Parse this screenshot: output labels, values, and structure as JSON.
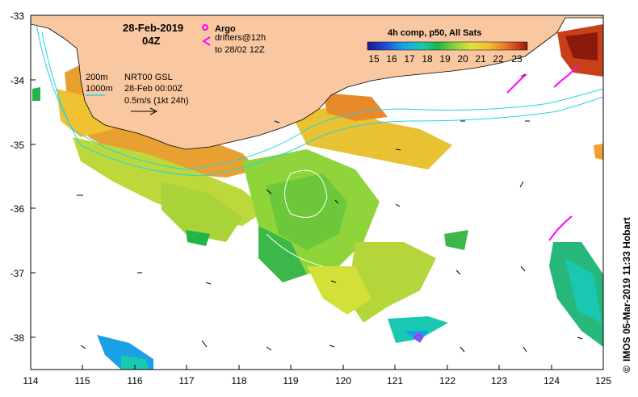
{
  "map": {
    "title_date": "28-Feb-2019",
    "title_time": "04Z",
    "legend": {
      "argo_label": "Argo",
      "drifters_label": "drifters@12h",
      "drifters_sub": "to 28/02 12Z",
      "argo_color": "#ff00ff",
      "drifter_color": "#ff00ff"
    },
    "contours": {
      "c200": "200m",
      "c1000": "1000m",
      "contour_color": "#22d3e6"
    },
    "current_info": {
      "line1": "NRT00 GSL",
      "line2": "28-Feb 00:00Z",
      "line3": "0.5m/s (1kt 24h)"
    },
    "colorbar": {
      "title": "4h comp, p50, All Sats",
      "ticks": [
        "15",
        "16",
        "17",
        "18",
        "19",
        "20",
        "21",
        "22",
        "23"
      ],
      "colors": [
        "#1a1a8c",
        "#1f4fd6",
        "#1aa0e6",
        "#19c8b0",
        "#22b44a",
        "#6fcf3a",
        "#c8e03a",
        "#f0d23a",
        "#f0a030",
        "#e8702a",
        "#c8401a",
        "#8c1a0a"
      ]
    },
    "land_color": "#fac8a0",
    "x_axis": {
      "ticks": [
        "114",
        "115",
        "116",
        "117",
        "118",
        "119",
        "120",
        "121",
        "122",
        "123",
        "124",
        "125"
      ],
      "range": [
        114,
        125
      ]
    },
    "y_axis": {
      "ticks": [
        "-33",
        "-34",
        "-35",
        "-36",
        "-37",
        "-38"
      ],
      "range": [
        -38.5,
        -33
      ]
    },
    "credit": "IMOS 05-Mar-2019 11:33 Hobart",
    "copyright": "©"
  }
}
